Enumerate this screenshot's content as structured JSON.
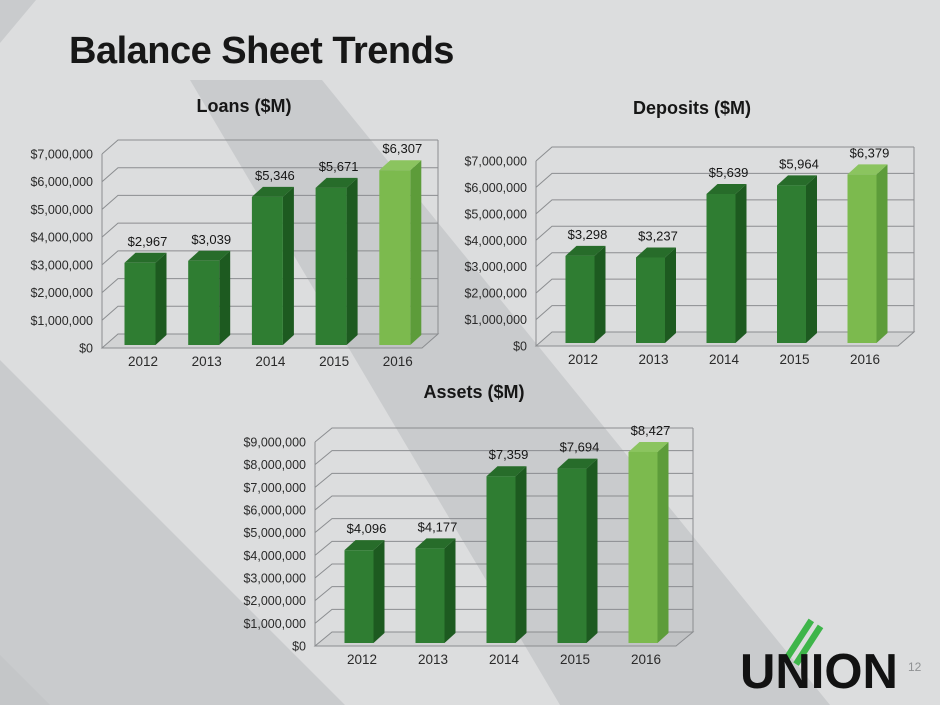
{
  "slide": {
    "title": "Balance Sheet Trends",
    "page_number": "12",
    "logo_text": "UNION"
  },
  "colors": {
    "background_base": "#dcddde",
    "background_band": "#c9cbcd",
    "background_corner": "#c4c6c8",
    "gridline": "#8b8d90",
    "axis_text": "#2a2a2a",
    "label_text": "#161616",
    "bar_dark_front": "#2f7d32",
    "bar_dark_side": "#1d5a20",
    "bar_dark_top": "#276c2a",
    "bar_light_front": "#7cba4e",
    "bar_light_side": "#5d9c3a",
    "bar_light_top": "#8bc45f",
    "logo_black": "#121212",
    "logo_green": "#3eb54a",
    "floor_fill": "rgba(140,140,140,0.12)"
  },
  "chart_data": [
    {
      "id": "loans",
      "type": "bar",
      "title": "Loans ($M)",
      "categories": [
        "2012",
        "2013",
        "2014",
        "2015",
        "2016"
      ],
      "values": [
        2967,
        3039,
        5346,
        5671,
        6307
      ],
      "value_labels": [
        "$2,967",
        "$3,039",
        "$5,346",
        "$5,671",
        "$6,307"
      ],
      "tick_labels": [
        "$0",
        "$1,000,000",
        "$2,000,000",
        "$3,000,000",
        "$4,000,000",
        "$5,000,000",
        "$6,000,000",
        "$7,000,000"
      ],
      "ylim": [
        0,
        7000000
      ],
      "value_axis_max": 7000,
      "xlabel": "",
      "ylabel": "",
      "grid": true,
      "legend": "none",
      "style": "3d-column",
      "highlight_last_bar": true
    },
    {
      "id": "deposits",
      "type": "bar",
      "title": "Deposits ($M)",
      "categories": [
        "2012",
        "2013",
        "2014",
        "2015",
        "2016"
      ],
      "values": [
        3298,
        3237,
        5639,
        5964,
        6379
      ],
      "value_labels": [
        "$3,298",
        "$3,237",
        "$5,639",
        "$5,964",
        "$6,379"
      ],
      "tick_labels": [
        "$0",
        "$1,000,000",
        "$2,000,000",
        "$3,000,000",
        "$4,000,000",
        "$5,000,000",
        "$6,000,000",
        "$7,000,000"
      ],
      "ylim": [
        0,
        7000000
      ],
      "value_axis_max": 7000,
      "xlabel": "",
      "ylabel": "",
      "grid": true,
      "legend": "none",
      "style": "3d-column",
      "highlight_last_bar": true
    },
    {
      "id": "assets",
      "type": "bar",
      "title": "Assets ($M)",
      "categories": [
        "2012",
        "2013",
        "2014",
        "2015",
        "2016"
      ],
      "values": [
        4096,
        4177,
        7359,
        7694,
        8427
      ],
      "value_labels": [
        "$4,096",
        "$4,177",
        "$7,359",
        "$7,694",
        "$8,427"
      ],
      "tick_labels": [
        "$0",
        "$1,000,000",
        "$2,000,000",
        "$3,000,000",
        "$4,000,000",
        "$5,000,000",
        "$6,000,000",
        "$7,000,000",
        "$8,000,000",
        "$9,000,000"
      ],
      "ylim": [
        0,
        9000000
      ],
      "value_axis_max": 9000,
      "xlabel": "",
      "ylabel": "",
      "grid": true,
      "legend": "none",
      "style": "3d-column",
      "highlight_last_bar": true
    }
  ]
}
